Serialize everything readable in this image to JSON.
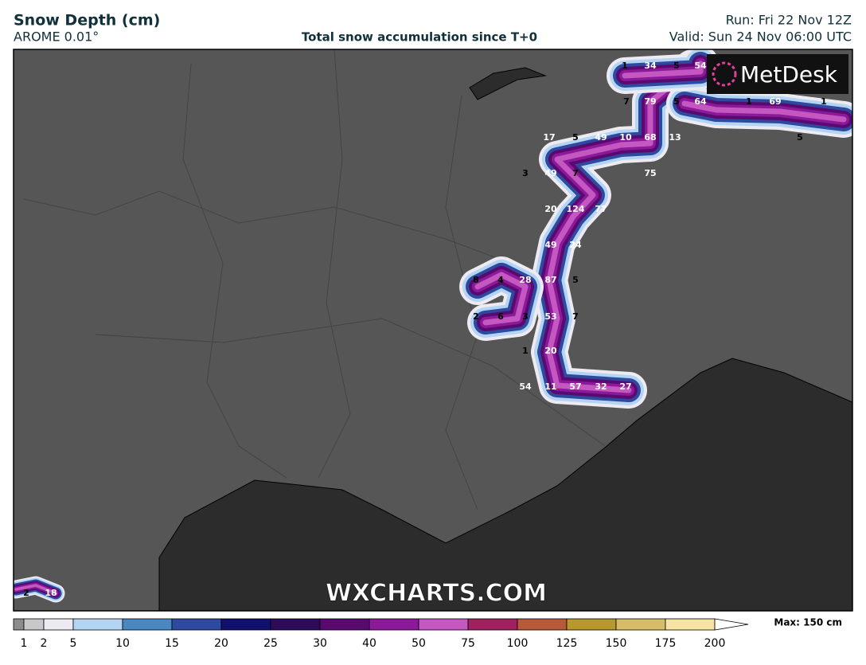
{
  "header": {
    "title": "Snow Depth (cm)",
    "model": "AROME 0.01°",
    "subtitle": "Total snow accumulation since T+0",
    "run": "Run: Fri 22 Nov 12Z",
    "valid": "Valid: Sun 24 Nov 06:00 UTC"
  },
  "logo": "MetDesk",
  "watermark": "WXCHARTS.COM",
  "map": {
    "point_values": [
      1,
      34,
      5,
      54,
      7,
      79,
      5,
      64,
      1,
      69,
      1,
      17,
      5,
      49,
      10,
      68,
      13,
      5,
      3,
      49,
      7,
      75,
      20,
      124,
      77,
      49,
      24,
      8,
      4,
      28,
      87,
      5,
      2,
      6,
      3,
      53,
      7,
      1,
      20,
      54,
      11,
      57,
      32,
      27,
      2,
      18
    ]
  },
  "legend": {
    "ticks": [
      1,
      2,
      5,
      10,
      15,
      20,
      25,
      30,
      40,
      50,
      75,
      100,
      125,
      150,
      175,
      200
    ],
    "colors": [
      "#8c8c8c",
      "#c8c8c8",
      "#eeeaf2",
      "#b4d4f4",
      "#4a86c0",
      "#2e4aa0",
      "#10106e",
      "#2e0a5a",
      "#5a0a6e",
      "#8a1a9a",
      "#c458c0",
      "#a02060",
      "#b85a3a",
      "#b8982e",
      "#d8bc6a",
      "#f6e4a4"
    ],
    "max_label": "Max: 150 cm"
  }
}
